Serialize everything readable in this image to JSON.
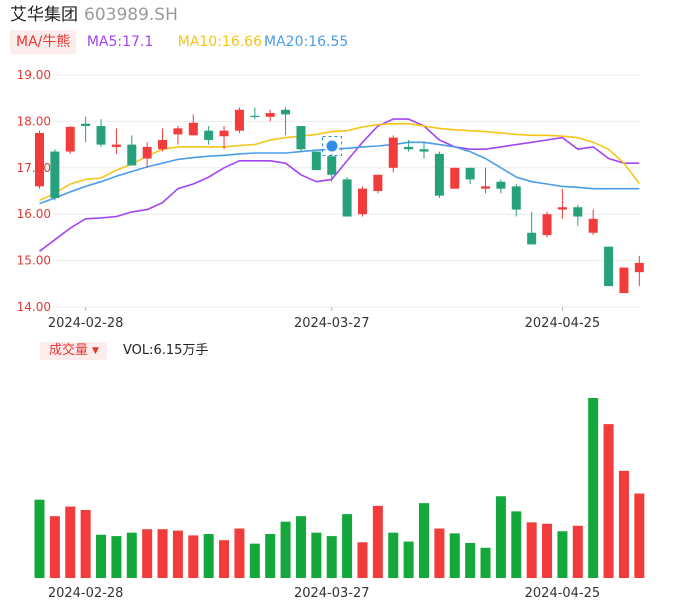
{
  "header": {
    "name": "艾华集团",
    "code": "603989.SH"
  },
  "ma_legend": {
    "tag": "MA/牛熊",
    "ma5": "MA5:17.1",
    "ma10": "MA10:16.66",
    "ma20": "MA20:16.55"
  },
  "volume_legend": {
    "tag": "成交量",
    "value": "VOL:6.15万手"
  },
  "colors": {
    "up": "#f23b3b",
    "down": "#26a17b",
    "vol_down": "#14a83c",
    "ma5": "#a445f0",
    "ma10": "#f5c518",
    "ma20": "#4a9de8",
    "axis_label": "#e53935",
    "grid": "#ececec"
  },
  "chart_data": [
    {
      "type": "candlestick",
      "title": "",
      "ylim": [
        14.0,
        19.0
      ],
      "y_ticks": [
        "19.00",
        "18.00",
        "17.00",
        "16.00",
        "15.00",
        "14.00"
      ],
      "x_tick_labels": [
        {
          "index": 3,
          "label": "2024-02-28"
        },
        {
          "index": 19,
          "label": "2024-03-27"
        },
        {
          "index": 34,
          "label": "2024-04-25"
        }
      ],
      "grid": true,
      "candles": [
        {
          "o": 16.6,
          "h": 17.8,
          "l": 16.55,
          "c": 17.75
        },
        {
          "o": 17.35,
          "h": 17.4,
          "l": 16.3,
          "c": 16.35
        },
        {
          "o": 17.35,
          "h": 17.9,
          "l": 17.3,
          "c": 17.88
        },
        {
          "o": 17.95,
          "h": 18.1,
          "l": 17.55,
          "c": 17.9
        },
        {
          "o": 17.9,
          "h": 18.05,
          "l": 17.45,
          "c": 17.5
        },
        {
          "o": 17.45,
          "h": 17.85,
          "l": 17.3,
          "c": 17.5
        },
        {
          "o": 17.5,
          "h": 17.7,
          "l": 17.05,
          "c": 17.05
        },
        {
          "o": 17.2,
          "h": 17.55,
          "l": 17.0,
          "c": 17.45
        },
        {
          "o": 17.4,
          "h": 17.85,
          "l": 17.35,
          "c": 17.6
        },
        {
          "o": 17.72,
          "h": 17.9,
          "l": 17.5,
          "c": 17.85
        },
        {
          "o": 17.7,
          "h": 18.15,
          "l": 17.7,
          "c": 17.97
        },
        {
          "o": 17.8,
          "h": 17.9,
          "l": 17.5,
          "c": 17.6
        },
        {
          "o": 17.68,
          "h": 17.9,
          "l": 17.4,
          "c": 17.8
        },
        {
          "o": 17.8,
          "h": 18.3,
          "l": 17.75,
          "c": 18.25
        },
        {
          "o": 18.12,
          "h": 18.3,
          "l": 18.05,
          "c": 18.1
        },
        {
          "o": 18.1,
          "h": 18.25,
          "l": 18.0,
          "c": 18.18
        },
        {
          "o": 18.25,
          "h": 18.3,
          "l": 17.7,
          "c": 18.15
        },
        {
          "o": 17.9,
          "h": 17.9,
          "l": 17.35,
          "c": 17.4
        },
        {
          "o": 17.35,
          "h": 17.35,
          "l": 16.95,
          "c": 16.95
        },
        {
          "o": 17.25,
          "h": 17.3,
          "l": 16.7,
          "c": 16.85
        },
        {
          "o": 16.75,
          "h": 16.8,
          "l": 15.95,
          "c": 15.95
        },
        {
          "o": 16.0,
          "h": 16.6,
          "l": 15.95,
          "c": 16.55
        },
        {
          "o": 16.5,
          "h": 16.85,
          "l": 16.45,
          "c": 16.85
        },
        {
          "o": 17.0,
          "h": 17.7,
          "l": 16.9,
          "c": 17.65
        },
        {
          "o": 17.45,
          "h": 17.6,
          "l": 17.35,
          "c": 17.4
        },
        {
          "o": 17.4,
          "h": 17.55,
          "l": 17.2,
          "c": 17.35
        },
        {
          "o": 17.3,
          "h": 17.35,
          "l": 16.35,
          "c": 16.4
        },
        {
          "o": 16.55,
          "h": 17.0,
          "l": 16.55,
          "c": 17.0
        },
        {
          "o": 17.0,
          "h": 17.0,
          "l": 16.65,
          "c": 16.75
        },
        {
          "o": 16.55,
          "h": 17.0,
          "l": 16.45,
          "c": 16.6
        },
        {
          "o": 16.7,
          "h": 16.75,
          "l": 16.45,
          "c": 16.55
        },
        {
          "o": 16.6,
          "h": 16.65,
          "l": 15.95,
          "c": 16.1
        },
        {
          "o": 15.6,
          "h": 16.05,
          "l": 15.35,
          "c": 15.35
        },
        {
          "o": 15.55,
          "h": 16.05,
          "l": 15.5,
          "c": 16.0
        },
        {
          "o": 16.1,
          "h": 16.55,
          "l": 15.9,
          "c": 16.15
        },
        {
          "o": 16.15,
          "h": 16.2,
          "l": 15.75,
          "c": 15.95
        },
        {
          "o": 15.6,
          "h": 16.1,
          "l": 15.55,
          "c": 15.9
        },
        {
          "o": 15.3,
          "h": 15.3,
          "l": 14.45,
          "c": 14.45
        },
        {
          "o": 14.3,
          "h": 14.85,
          "l": 14.3,
          "c": 14.85
        },
        {
          "o": 14.75,
          "h": 15.1,
          "l": 14.45,
          "c": 14.95
        }
      ],
      "moving_averages": [
        {
          "name": "MA5",
          "values": [
            15.2,
            15.45,
            15.7,
            15.9,
            15.92,
            15.95,
            16.05,
            16.1,
            16.25,
            16.55,
            16.65,
            16.8,
            17.0,
            17.15,
            17.15,
            17.15,
            17.1,
            16.85,
            16.7,
            16.75,
            17.15,
            17.55,
            17.9,
            18.05,
            18.05,
            17.9,
            17.6,
            17.45,
            17.4,
            17.4,
            17.45,
            17.5,
            17.55,
            17.6,
            17.65,
            17.4,
            17.45,
            17.2,
            17.1,
            17.1
          ]
        },
        {
          "name": "MA10",
          "values": [
            16.3,
            16.45,
            16.65,
            16.75,
            16.78,
            16.95,
            17.08,
            17.25,
            17.4,
            17.45,
            17.45,
            17.45,
            17.45,
            17.48,
            17.5,
            17.6,
            17.65,
            17.68,
            17.72,
            17.78,
            17.8,
            17.88,
            17.93,
            17.95,
            17.95,
            17.9,
            17.85,
            17.82,
            17.8,
            17.78,
            17.75,
            17.72,
            17.7,
            17.7,
            17.68,
            17.65,
            17.55,
            17.4,
            17.1,
            16.66
          ]
        },
        {
          "name": "MA20",
          "values": [
            16.23,
            16.35,
            16.48,
            16.6,
            16.7,
            16.82,
            16.92,
            17.02,
            17.1,
            17.18,
            17.22,
            17.25,
            17.27,
            17.3,
            17.32,
            17.32,
            17.32,
            17.35,
            17.38,
            17.4,
            17.42,
            17.45,
            17.47,
            17.5,
            17.55,
            17.55,
            17.5,
            17.45,
            17.35,
            17.2,
            17.0,
            16.8,
            16.7,
            16.65,
            16.6,
            16.58,
            16.55,
            16.55,
            16.55,
            16.55
          ]
        }
      ]
    },
    {
      "type": "bar",
      "title": "",
      "series": [
        {
          "values": [
            5.7,
            4.5,
            5.2,
            4.95,
            3.15,
            3.05,
            3.3,
            3.55,
            3.55,
            3.45,
            3.1,
            3.2,
            2.75,
            3.6,
            2.5,
            3.2,
            4.1,
            4.5,
            3.3,
            3.05,
            4.65,
            2.6,
            5.25,
            3.3,
            2.65,
            5.45,
            3.6,
            3.25,
            2.55,
            2.2,
            5.95,
            4.85,
            4.05,
            3.95,
            3.4,
            3.8,
            13.1,
            11.2,
            7.8,
            6.15
          ]
        }
      ],
      "directions": [
        "D",
        "U",
        "U",
        "U",
        "D",
        "D",
        "D",
        "U",
        "U",
        "U",
        "U",
        "D",
        "U",
        "U",
        "D",
        "D",
        "D",
        "D",
        "D",
        "D",
        "D",
        "U",
        "U",
        "D",
        "D",
        "D",
        "U",
        "D",
        "D",
        "D",
        "D",
        "D",
        "U",
        "U",
        "D",
        "U",
        "D",
        "U",
        "U",
        "U"
      ],
      "x_tick_labels": [
        "2024-02-28",
        "2024-03-27",
        "2024-04-25"
      ]
    }
  ]
}
